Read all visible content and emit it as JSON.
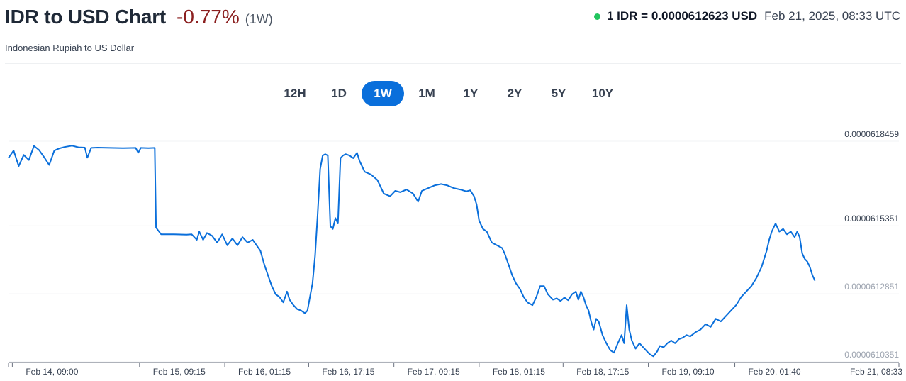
{
  "header": {
    "title": "IDR to USD Chart",
    "change": "-0.77%",
    "period": "(1W)",
    "subtitle": "Indonesian Rupiah to US Dollar",
    "rate": "1 IDR = 0.0000612623 USD",
    "timestamp": "Feb 21, 2025, 08:33 UTC"
  },
  "ranges": [
    {
      "label": "12H",
      "active": false
    },
    {
      "label": "1D",
      "active": false
    },
    {
      "label": "1W",
      "active": true
    },
    {
      "label": "1M",
      "active": false
    },
    {
      "label": "1Y",
      "active": false
    },
    {
      "label": "2Y",
      "active": false
    },
    {
      "label": "5Y",
      "active": false
    },
    {
      "label": "10Y",
      "active": false
    }
  ],
  "colors": {
    "line": "#0a6fdb",
    "active_button": "#0a6fdb",
    "negative_change": "#8b1f1f",
    "live_dot": "#22c55e"
  },
  "chart_data": {
    "type": "line",
    "title": "",
    "xlabel": "",
    "ylabel": "",
    "grid": "horizontal",
    "ylim": [
      6.10351e-05,
      6.18459e-05
    ],
    "xlim": [
      "Feb 14, 08:33",
      "Feb 21, 08:33"
    ],
    "y_ticks": [
      {
        "label": "0.0000618459",
        "value": 6.18459e-05,
        "faint": false
      },
      {
        "label": "0.0000615351",
        "value": 6.15351e-05,
        "faint": false
      },
      {
        "label": "0.0000612851",
        "value": 6.12851e-05,
        "faint": true
      },
      {
        "label": "0.0000610351",
        "value": 6.10351e-05,
        "faint": true
      }
    ],
    "x_ticks": [
      {
        "label": "Feb 14, 09:00",
        "value": 0.03
      },
      {
        "label": "Feb 15, 09:15",
        "value": 1.03
      },
      {
        "label": "Feb 16, 01:15",
        "value": 1.7
      },
      {
        "label": "Feb 16, 17:15",
        "value": 2.36
      },
      {
        "label": "Feb 17, 09:15",
        "value": 3.03
      },
      {
        "label": "Feb 18, 01:15",
        "value": 3.7
      },
      {
        "label": "Feb 18, 17:15",
        "value": 4.36
      },
      {
        "label": "Feb 19, 09:10",
        "value": 5.03
      },
      {
        "label": "Feb 20, 01:40",
        "value": 5.71
      },
      {
        "label": "Feb 21, 08:33",
        "value": 7.0
      }
    ],
    "series": [
      {
        "points": [
          [
            0.0,
            6.1761e-05
          ],
          [
            0.04,
            6.1788e-05
          ],
          [
            0.08,
            6.1731e-05
          ],
          [
            0.12,
            6.1772e-05
          ],
          [
            0.16,
            6.1753e-05
          ],
          [
            0.2,
            6.1805e-05
          ],
          [
            0.24,
            6.179e-05
          ],
          [
            0.28,
            6.1764e-05
          ],
          [
            0.32,
            6.1735e-05
          ],
          [
            0.36,
            6.1788e-05
          ],
          [
            0.4,
            6.1796e-05
          ],
          [
            0.44,
            6.1801e-05
          ],
          [
            0.5,
            6.1806e-05
          ],
          [
            0.55,
            6.18e-05
          ],
          [
            0.6,
            6.1799e-05
          ],
          [
            0.62,
            6.1762e-05
          ],
          [
            0.65,
            6.1798e-05
          ],
          [
            0.7,
            6.1799e-05
          ],
          [
            0.8,
            6.1798e-05
          ],
          [
            0.9,
            6.1797e-05
          ],
          [
            1.0,
            6.1798e-05
          ],
          [
            1.02,
            6.178e-05
          ],
          [
            1.04,
            6.1798e-05
          ],
          [
            1.1,
            6.1797e-05
          ],
          [
            1.15,
            6.1798e-05
          ],
          [
            1.16,
            6.1505e-05
          ],
          [
            1.2,
            6.148e-05
          ],
          [
            1.3,
            6.148e-05
          ],
          [
            1.4,
            6.1479e-05
          ],
          [
            1.44,
            6.148e-05
          ],
          [
            1.48,
            6.146e-05
          ],
          [
            1.5,
            6.149e-05
          ],
          [
            1.53,
            6.146e-05
          ],
          [
            1.56,
            6.1485e-05
          ],
          [
            1.6,
            6.1475e-05
          ],
          [
            1.64,
            6.145e-05
          ],
          [
            1.68,
            6.148e-05
          ],
          [
            1.72,
            6.144e-05
          ],
          [
            1.76,
            6.1465e-05
          ],
          [
            1.8,
            6.144e-05
          ],
          [
            1.84,
            6.147e-05
          ],
          [
            1.88,
            6.145e-05
          ],
          [
            1.92,
            6.146e-05
          ],
          [
            1.95,
            6.144e-05
          ],
          [
            1.98,
            6.142e-05
          ],
          [
            2.01,
            6.137e-05
          ],
          [
            2.04,
            6.133e-05
          ],
          [
            2.07,
            6.129e-05
          ],
          [
            2.1,
            6.126e-05
          ],
          [
            2.13,
            6.125e-05
          ],
          [
            2.16,
            6.123e-05
          ],
          [
            2.19,
            6.127e-05
          ],
          [
            2.21,
            6.124e-05
          ],
          [
            2.24,
            6.122e-05
          ],
          [
            2.27,
            6.1205e-05
          ],
          [
            2.3,
            6.12e-05
          ],
          [
            2.33,
            6.119e-05
          ],
          [
            2.35,
            6.12e-05
          ],
          [
            2.37,
            6.125e-05
          ],
          [
            2.39,
            6.13e-05
          ],
          [
            2.41,
            6.14e-05
          ],
          [
            2.43,
            6.155e-05
          ],
          [
            2.45,
            6.172e-05
          ],
          [
            2.47,
            6.177e-05
          ],
          [
            2.49,
            6.1775e-05
          ],
          [
            2.51,
            6.177e-05
          ],
          [
            2.53,
            6.151e-05
          ],
          [
            2.55,
            6.15e-05
          ],
          [
            2.57,
            6.154e-05
          ],
          [
            2.59,
            6.152e-05
          ],
          [
            2.61,
            6.176e-05
          ],
          [
            2.63,
            6.177e-05
          ],
          [
            2.65,
            6.1775e-05
          ],
          [
            2.68,
            6.177e-05
          ],
          [
            2.71,
            6.176e-05
          ],
          [
            2.74,
            6.178e-05
          ],
          [
            2.76,
            6.175e-05
          ],
          [
            2.8,
            6.171e-05
          ],
          [
            2.85,
            6.17e-05
          ],
          [
            2.9,
            6.168e-05
          ],
          [
            2.95,
            6.163e-05
          ],
          [
            3.0,
            6.162e-05
          ],
          [
            3.04,
            6.164e-05
          ],
          [
            3.08,
            6.1635e-05
          ],
          [
            3.13,
            6.1645e-05
          ],
          [
            3.18,
            6.163e-05
          ],
          [
            3.22,
            6.16e-05
          ],
          [
            3.25,
            6.164e-05
          ],
          [
            3.3,
            6.165e-05
          ],
          [
            3.35,
            6.166e-05
          ],
          [
            3.4,
            6.1665e-05
          ],
          [
            3.45,
            6.166e-05
          ],
          [
            3.5,
            6.165e-05
          ],
          [
            3.55,
            6.1645e-05
          ],
          [
            3.6,
            6.1638e-05
          ],
          [
            3.63,
            6.1642e-05
          ],
          [
            3.66,
            6.162e-05
          ],
          [
            3.68,
            6.159e-05
          ],
          [
            3.7,
            6.153e-05
          ],
          [
            3.73,
            6.15e-05
          ],
          [
            3.76,
            6.149e-05
          ],
          [
            3.8,
            6.145e-05
          ],
          [
            3.84,
            6.144e-05
          ],
          [
            3.88,
            6.143e-05
          ],
          [
            3.9,
            6.141e-05
          ],
          [
            3.93,
            6.137e-05
          ],
          [
            3.96,
            6.133e-05
          ],
          [
            3.99,
            6.13e-05
          ],
          [
            4.02,
            6.128e-05
          ],
          [
            4.05,
            6.125e-05
          ],
          [
            4.08,
            6.123e-05
          ],
          [
            4.12,
            6.122e-05
          ],
          [
            4.15,
            6.125e-05
          ],
          [
            4.18,
            6.129e-05
          ],
          [
            4.21,
            6.129e-05
          ],
          [
            4.24,
            6.126e-05
          ],
          [
            4.28,
            6.124e-05
          ],
          [
            4.31,
            6.1245e-05
          ],
          [
            4.34,
            6.1235e-05
          ],
          [
            4.37,
            6.1248e-05
          ],
          [
            4.4,
            6.1238e-05
          ],
          [
            4.43,
            6.126e-05
          ],
          [
            4.46,
            6.127e-05
          ],
          [
            4.48,
            6.124e-05
          ],
          [
            4.5,
            6.127e-05
          ],
          [
            4.52,
            6.125e-05
          ],
          [
            4.54,
            6.122e-05
          ],
          [
            4.56,
            6.12e-05
          ],
          [
            4.58,
            6.116e-05
          ],
          [
            4.6,
            6.113e-05
          ],
          [
            4.62,
            6.117e-05
          ],
          [
            4.64,
            6.116e-05
          ],
          [
            4.67,
            6.111e-05
          ],
          [
            4.7,
            6.108e-05
          ],
          [
            4.73,
            6.1055e-05
          ],
          [
            4.76,
            6.1045e-05
          ],
          [
            4.79,
            6.108e-05
          ],
          [
            4.82,
            6.111e-05
          ],
          [
            4.84,
            6.108e-05
          ],
          [
            4.86,
            6.122e-05
          ],
          [
            4.88,
            6.113e-05
          ],
          [
            4.9,
            6.109e-05
          ],
          [
            4.93,
            6.106e-05
          ],
          [
            4.96,
            6.108e-05
          ],
          [
            4.99,
            6.1065e-05
          ],
          [
            5.02,
            6.105e-05
          ],
          [
            5.04,
            6.104e-05
          ],
          [
            5.07,
            6.1032e-05
          ],
          [
            5.1,
            6.105e-05
          ],
          [
            5.12,
            6.107e-05
          ],
          [
            5.15,
            6.1065e-05
          ],
          [
            5.18,
            6.108e-05
          ],
          [
            5.21,
            6.109e-05
          ],
          [
            5.24,
            6.108e-05
          ],
          [
            5.27,
            6.1095e-05
          ],
          [
            5.3,
            6.11e-05
          ],
          [
            5.33,
            6.111e-05
          ],
          [
            5.36,
            6.1105e-05
          ],
          [
            5.4,
            6.112e-05
          ],
          [
            5.44,
            6.113e-05
          ],
          [
            5.48,
            6.115e-05
          ],
          [
            5.52,
            6.114e-05
          ],
          [
            5.56,
            6.117e-05
          ],
          [
            5.6,
            6.116e-05
          ],
          [
            5.64,
            6.118e-05
          ],
          [
            5.68,
            6.12e-05
          ],
          [
            5.72,
            6.122e-05
          ],
          [
            5.76,
            6.125e-05
          ],
          [
            5.8,
            6.127e-05
          ],
          [
            5.84,
            6.129e-05
          ],
          [
            5.88,
            6.132e-05
          ],
          [
            5.9,
            6.134e-05
          ],
          [
            5.92,
            6.136e-05
          ],
          [
            5.94,
            6.139e-05
          ],
          [
            5.96,
            6.142e-05
          ],
          [
            5.98,
            6.146e-05
          ],
          [
            6.0,
            6.149e-05
          ],
          [
            6.03,
            6.152e-05
          ],
          [
            6.06,
            6.149e-05
          ],
          [
            6.09,
            6.15e-05
          ],
          [
            6.12,
            6.148e-05
          ],
          [
            6.15,
            6.149e-05
          ],
          [
            6.18,
            6.147e-05
          ],
          [
            6.2,
            6.149e-05
          ],
          [
            6.22,
            6.147e-05
          ],
          [
            6.24,
            6.141e-05
          ],
          [
            6.26,
            6.139e-05
          ],
          [
            6.28,
            6.138e-05
          ],
          [
            6.3,
            6.136e-05
          ],
          [
            6.32,
            6.133e-05
          ],
          [
            6.34,
            6.131e-05
          ]
        ]
      }
    ]
  }
}
